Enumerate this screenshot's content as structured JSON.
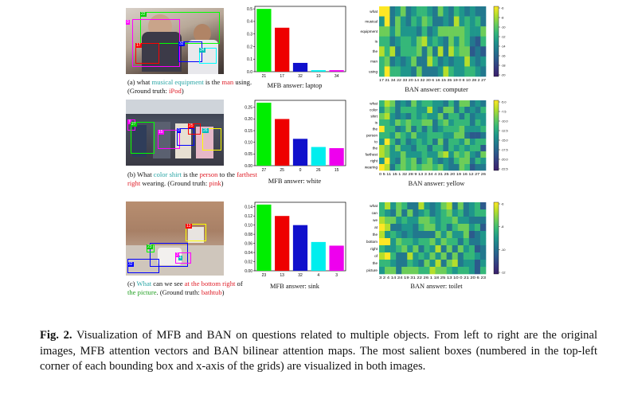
{
  "rows": [
    {
      "caption": {
        "prefix": "(a) what ",
        "h1": "musical equipment",
        "mid1": " is the ",
        "h2": "man",
        "mid2": " using. (Ground truth: ",
        "h3": "iPod",
        "suffix": ")"
      },
      "mfb_label": "MFB answer: laptop",
      "ban_label": "BAN answer: computer",
      "boxes": [
        "0",
        "22",
        "17",
        "32",
        "34"
      ],
      "words": [
        "what",
        "musical",
        "equipment",
        "is",
        "the",
        "man",
        "using"
      ],
      "grid_xticks": "17 21 34 22 33 20 14 32 30 6 16 15 35 19 0 8 10 28 2 27",
      "colorbar_ticks": [
        "-6",
        "-8",
        "-10",
        "-12",
        "-14",
        "-16",
        "-18",
        "-20"
      ]
    },
    {
      "caption": {
        "prefix": "(b) What ",
        "h1": "color shirt",
        "mid1": " is the ",
        "h2": "person",
        "mid2": " to the ",
        "h3": "farthest right",
        "suffix": " wearing. (Ground truth: ",
        "h4": "pink",
        "end": ")"
      },
      "mfb_label": "MFB answer: white",
      "ban_label": "BAN answer: yellow",
      "boxes": [
        "7",
        "27",
        "25",
        "0",
        "26",
        "15"
      ],
      "words": [
        "what",
        "color",
        "shirt",
        "is",
        "the",
        "person",
        "to",
        "the",
        "farthest",
        "right",
        "wearing"
      ],
      "grid_xticks": "0 5 11 15 1 32 28 9 13 3 34 4 31 25 20 19 16 12 27 26",
      "colorbar_ticks": [
        "-5.0",
        "-7.5",
        "-10.0",
        "-12.5",
        "-15.0",
        "-17.5",
        "-20.0",
        "-22.5"
      ]
    },
    {
      "caption": {
        "prefix": "(c) ",
        "h1": "What",
        "mid1": " can we see ",
        "h2": "at the bottom right",
        "mid2": " of ",
        "h3": "the picture",
        "suffix": ". (Ground truth: ",
        "h4": "bathtub",
        "end": ")"
      },
      "mfb_label": "MFB answer: sink",
      "ban_label": "BAN answer: toilet",
      "boxes": [
        "23",
        "13",
        "32",
        "4",
        "3"
      ],
      "words": [
        "what",
        "can",
        "we",
        "at",
        "the",
        "bottom",
        "right",
        "of",
        "the",
        "picture"
      ],
      "grid_xticks": "3 2 4 14 24 19 31 22 26 1 18 25 13 10 0 21 20 6 23",
      "colorbar_ticks": [
        "-6",
        "-8",
        "-10",
        "-12"
      ]
    }
  ],
  "chart_data": [
    {
      "type": "bar",
      "title": "",
      "categories": [
        "21",
        "17",
        "32",
        "10",
        "34"
      ],
      "values": [
        0.5,
        0.35,
        0.07,
        0.012,
        0.012
      ],
      "ylim": [
        0,
        0.52
      ],
      "yticks": [
        "0.0",
        "0.1",
        "0.2",
        "0.3",
        "0.4",
        "0.5"
      ],
      "colors": [
        "#00ee00",
        "#ee0000",
        "#1010cc",
        "#00eeee",
        "#ee00ee"
      ]
    },
    {
      "type": "bar",
      "title": "",
      "categories": [
        "27",
        "25",
        "0",
        "26",
        "15"
      ],
      "values": [
        0.27,
        0.2,
        0.115,
        0.08,
        0.075
      ],
      "ylim": [
        0,
        0.28
      ],
      "yticks": [
        "0.00",
        "0.05",
        "0.10",
        "0.15",
        "0.20",
        "0.25"
      ],
      "colors": [
        "#00ee00",
        "#ee0000",
        "#1010cc",
        "#00eeee",
        "#ee00ee"
      ]
    },
    {
      "type": "bar",
      "title": "",
      "categories": [
        "23",
        "13",
        "32",
        "4",
        "3"
      ],
      "values": [
        0.145,
        0.12,
        0.1,
        0.063,
        0.055
      ],
      "ylim": [
        0,
        0.15
      ],
      "yticks": [
        "0.00",
        "0.02",
        "0.04",
        "0.06",
        "0.08",
        "0.10",
        "0.12",
        "0.14"
      ],
      "colors": [
        "#00ee00",
        "#ee0000",
        "#1010cc",
        "#00eeee",
        "#ee00ee"
      ]
    }
  ],
  "figure_caption": {
    "label": "Fig. 2.",
    "text": " Visualization of MFB and BAN on questions related to multiple objects. From left to right are the original images, MFB attention vectors and BAN bilinear attention maps. The most salient boxes (numbered in the top-left corner of each bounding box and x-axis of the grids) are visualized in both images."
  }
}
